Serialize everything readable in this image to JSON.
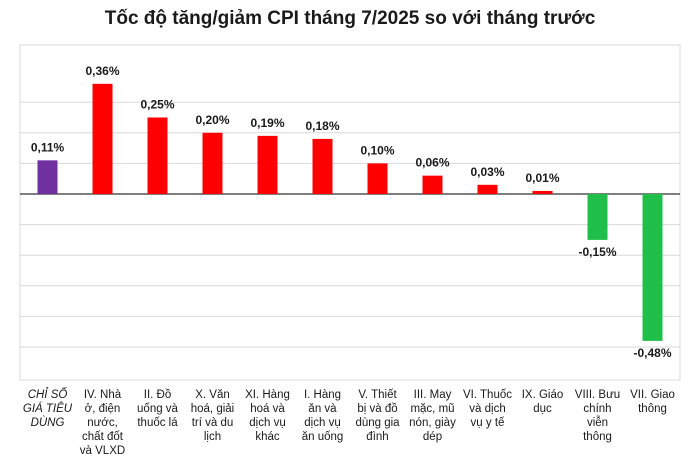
{
  "chart_data": {
    "type": "bar",
    "title": "Tốc độ tăng/giảm CPI tháng 7/2025 so với tháng trước",
    "xlabel": "",
    "ylabel": "",
    "ylim": [
      -0.55,
      0.4
    ],
    "grid": true,
    "categories": [
      "CHỈ SỐ GIÁ TIÊU DÙNG",
      "IV. Nhà ở, điện nước, chất đốt và VLXD",
      "II. Đồ uống và thuốc lá",
      "X. Văn hoá, giải trí và du lịch",
      "XI. Hàng hoá và dịch vụ khác",
      "I. Hàng ăn và dịch vụ ăn uống",
      "V. Thiết bị và đồ dùng gia đình",
      "III. May mặc, mũ nón, giày dép",
      "VI. Thuốc và dịch vụ y tế",
      "IX. Giáo dục",
      "VIII. Bưu chính viễn thông",
      "VII. Giao thông"
    ],
    "category_lines": [
      [
        "CHỈ SỐ",
        "GIÁ TIÊU",
        "DÙNG"
      ],
      [
        "IV. Nhà",
        "ở, điện",
        "nước,",
        "chất đốt",
        "và VLXD"
      ],
      [
        "II. Đồ",
        "uống và",
        "thuốc lá"
      ],
      [
        "X. Văn",
        "hoá, giải",
        "trí và du",
        "lịch"
      ],
      [
        "XI. Hàng",
        "hoá và",
        "dịch vụ",
        "khác"
      ],
      [
        "I. Hàng",
        "ăn và",
        "dịch vụ",
        "ăn uống"
      ],
      [
        "V. Thiết",
        "bị và đồ",
        "dùng gia",
        "đình"
      ],
      [
        "III. May",
        "mặc, mũ",
        "nón, giày",
        "dép"
      ],
      [
        "VI. Thuốc",
        "và dịch",
        "vụ y tế"
      ],
      [
        "IX. Giáo",
        "dục"
      ],
      [
        "VIII. Bưu",
        "chính",
        "viễn",
        "thông"
      ],
      [
        "VII. Giao",
        "thông"
      ]
    ],
    "values": [
      0.11,
      0.36,
      0.25,
      0.2,
      0.19,
      0.18,
      0.1,
      0.06,
      0.03,
      0.01,
      -0.15,
      -0.48
    ],
    "value_labels": [
      "0,11%",
      "0,36%",
      "0,25%",
      "0,20%",
      "0,19%",
      "0,18%",
      "0,10%",
      "0,06%",
      "0,03%",
      "0,01%",
      "-0,15%",
      "-0,48%"
    ],
    "colors": {
      "overall": "#7030a0",
      "positive": "#ff0000",
      "negative": "#1fbf4a",
      "grid": "#d9d9d9",
      "axis": "#333333"
    }
  }
}
